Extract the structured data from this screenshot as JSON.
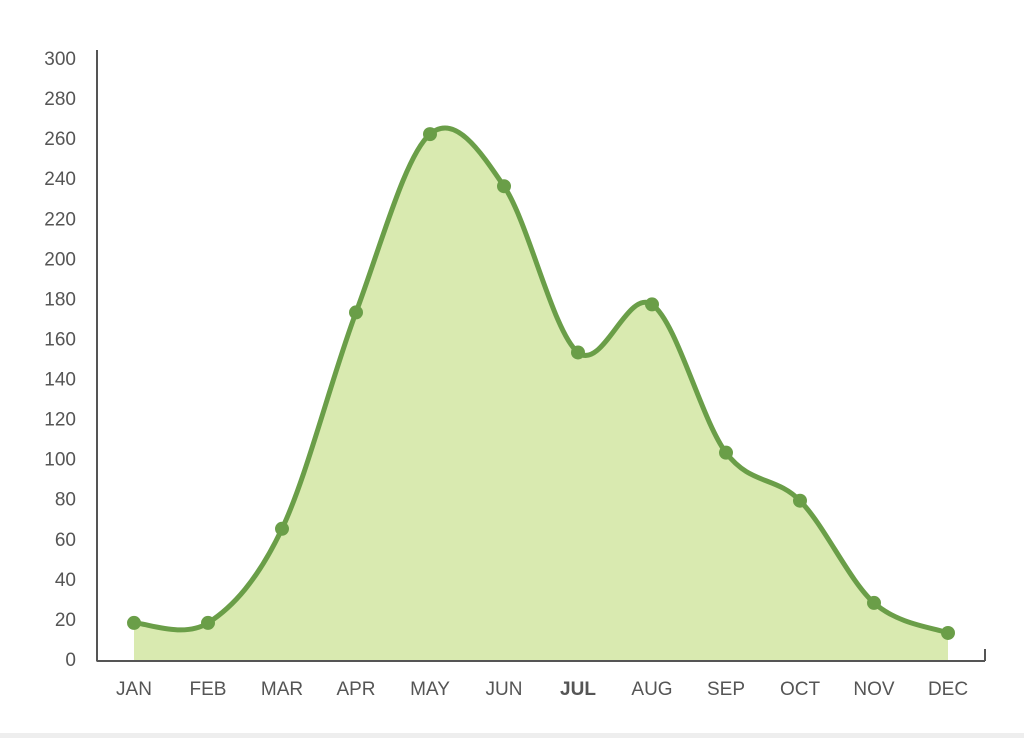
{
  "chart_data": {
    "type": "area",
    "categories": [
      "JAN",
      "FEB",
      "MAR",
      "APR",
      "MAY",
      "JUN",
      "JUL",
      "AUG",
      "SEP",
      "OCT",
      "NOV",
      "DEC"
    ],
    "values": [
      19,
      19,
      66,
      174,
      263,
      237,
      154,
      178,
      104,
      80,
      29,
      14
    ],
    "color": "#6a9e48",
    "fill": "#d9eab0",
    "ylim": [
      0,
      300
    ],
    "yticks": [
      0,
      20,
      40,
      60,
      80,
      100,
      120,
      140,
      160,
      180,
      200,
      220,
      240,
      260,
      280,
      300
    ],
    "smooth": true,
    "highlight": 6
  }
}
